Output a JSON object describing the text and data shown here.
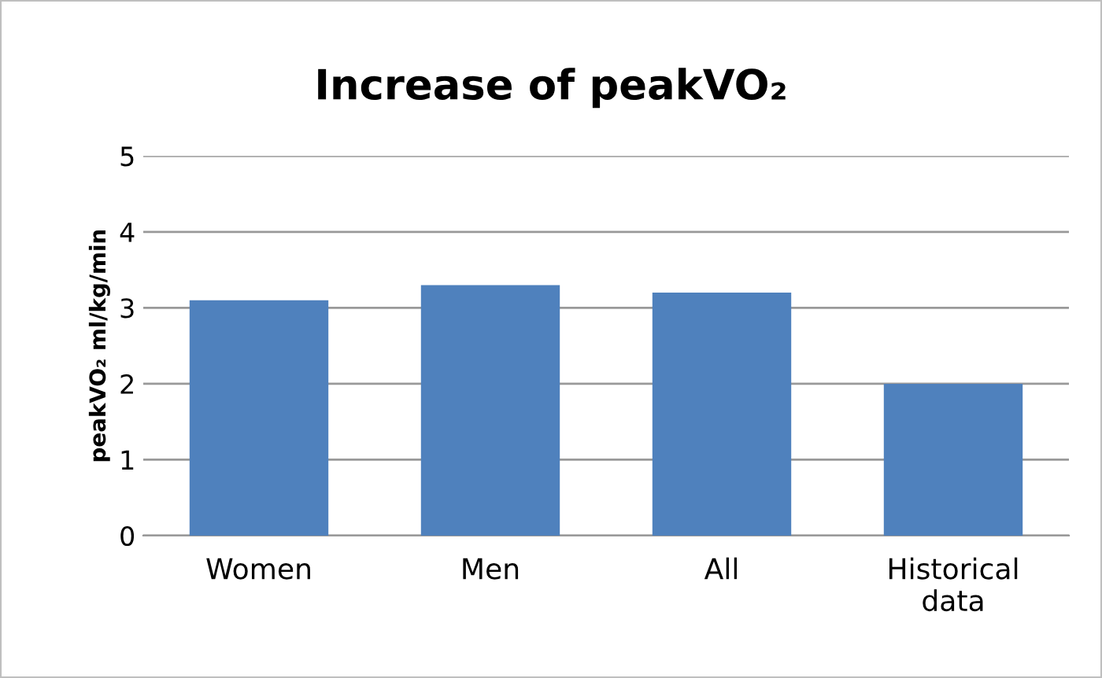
{
  "chart_data": {
    "type": "bar",
    "title": "Increase of peakVO₂",
    "ylabel": "peakVO₂ ml/kg/min",
    "categories": [
      "Women",
      "Men",
      "All",
      "Historical\ndata"
    ],
    "values": [
      3.1,
      3.3,
      3.2,
      2.0
    ],
    "color": "#4f81bd",
    "ylim": [
      0,
      5
    ],
    "yticks": [
      0,
      1,
      2,
      3,
      4,
      5
    ],
    "grid": "y",
    "legend": false
  }
}
